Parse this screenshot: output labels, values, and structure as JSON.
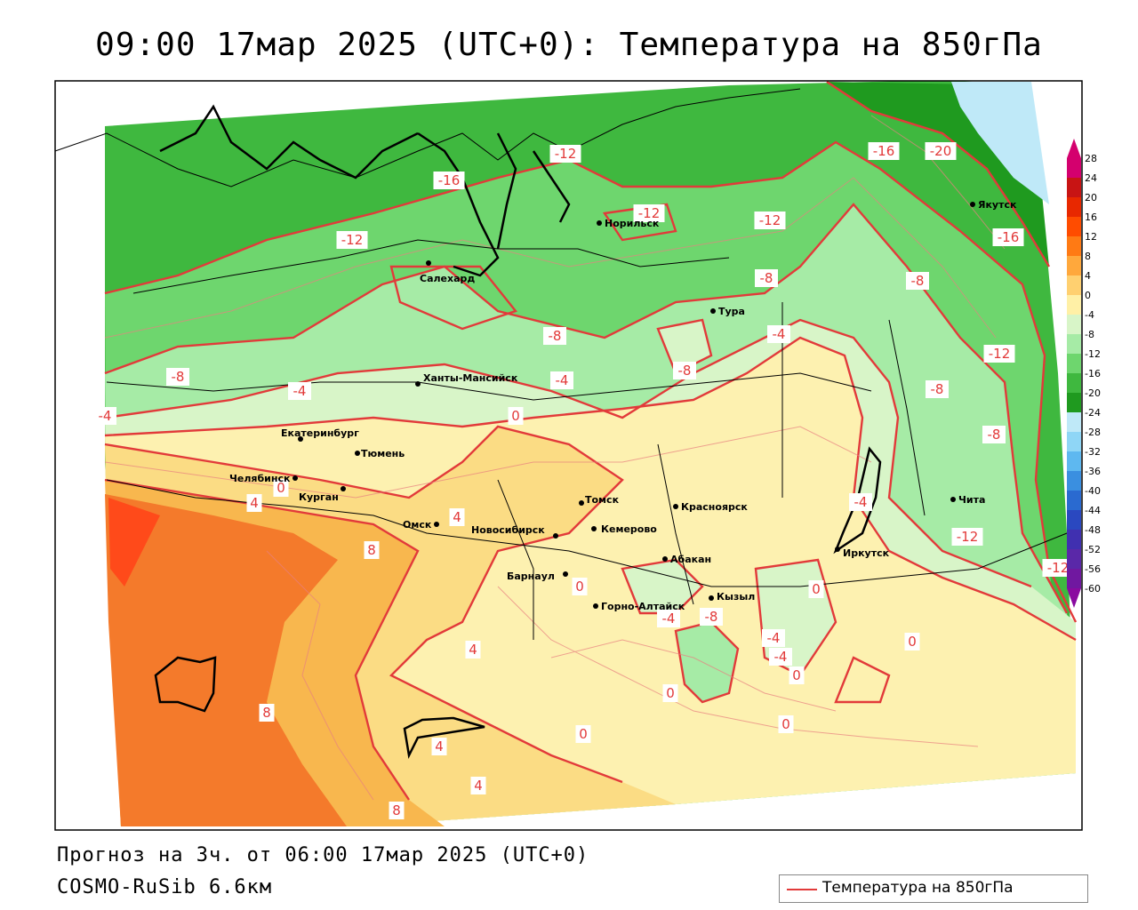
{
  "title": "09:00 17мар 2025 (UTC+0): Температура на 850гПа",
  "forecast_text": "Прогноз на 3ч. от 06:00 17мар 2025 (UTC+0)",
  "model_text": "COSMO-RuSib 6.6км",
  "legend": {
    "label": "Температура на 850гПа",
    "color": "#e23a3a"
  },
  "colors": {
    "isoline": "#e23a3a",
    "zone_minus20": "#1f9a1f",
    "zone_minus16": "#3fb83f",
    "zone_minus12": "#6ed66e",
    "zone_minus8": "#a6eba6",
    "zone_minus4": "#d8f5c8",
    "zone_0": "#fdf1b0",
    "zone_4": "#fbdc84",
    "zone_8": "#f8b74e",
    "zone_12": "#f47a2b",
    "zone_16": "#ff4a1a",
    "zone_cold": "#bfe9f8"
  },
  "scale": {
    "values": [
      "28",
      "24",
      "20",
      "16",
      "12",
      "8",
      "4",
      "0",
      "-4",
      "-8",
      "-12",
      "-16",
      "-20",
      "-24",
      "-28",
      "-32",
      "-36",
      "-40",
      "-44",
      "-48",
      "-52",
      "-56",
      "-60"
    ],
    "colors": [
      "#d4006e",
      "#c81414",
      "#e82800",
      "#ff4c00",
      "#ff7a14",
      "#ffa83c",
      "#ffd070",
      "#fff0a6",
      "#d8f5c8",
      "#a6eba6",
      "#6ed66e",
      "#3fb83f",
      "#1f9a1f",
      "#bfe9f8",
      "#8fd6f6",
      "#5eb8f0",
      "#3a8fe0",
      "#2a6ad0",
      "#2a48c0",
      "#4030b0",
      "#5a28a8",
      "#7018a0",
      "#8a0aa0"
    ]
  },
  "cities": [
    {
      "name": "Салехард"
    },
    {
      "name": "Норильск"
    },
    {
      "name": "Тура"
    },
    {
      "name": "Якутск"
    },
    {
      "name": "Ханты-Мансийск"
    },
    {
      "name": "Екатеринбург"
    },
    {
      "name": "Тюмень"
    },
    {
      "name": "Челябинск"
    },
    {
      "name": "Курган"
    },
    {
      "name": "Омск"
    },
    {
      "name": "Новосибирск"
    },
    {
      "name": "Томск"
    },
    {
      "name": "Кемерово"
    },
    {
      "name": "Красноярск"
    },
    {
      "name": "Барнаул"
    },
    {
      "name": "Абакан"
    },
    {
      "name": "Горно-Алтайск"
    },
    {
      "name": "Кызыл"
    },
    {
      "name": "Иркутск"
    },
    {
      "name": "Чита"
    }
  ],
  "isolines": [
    {
      "label": "-16"
    },
    {
      "label": "-12"
    },
    {
      "label": "-12"
    },
    {
      "label": "-12"
    },
    {
      "label": "-12"
    },
    {
      "label": "-16"
    },
    {
      "label": "-20"
    },
    {
      "label": "-16"
    },
    {
      "label": "-8"
    },
    {
      "label": "-8"
    },
    {
      "label": "-8"
    },
    {
      "label": "-4"
    },
    {
      "label": "-8"
    },
    {
      "label": "-12"
    },
    {
      "label": "-8"
    },
    {
      "label": "-8"
    },
    {
      "label": "-8"
    },
    {
      "label": "-4"
    },
    {
      "label": "-4"
    },
    {
      "label": "0"
    },
    {
      "label": "-4"
    },
    {
      "label": "0"
    },
    {
      "label": "4"
    },
    {
      "label": "4"
    },
    {
      "label": "8"
    },
    {
      "label": "0"
    },
    {
      "label": "-4"
    },
    {
      "label": "-8"
    },
    {
      "label": "-4"
    },
    {
      "label": "-4"
    },
    {
      "label": "-4"
    },
    {
      "label": "-12"
    },
    {
      "label": "0"
    },
    {
      "label": "0"
    },
    {
      "label": "4"
    },
    {
      "label": "0"
    },
    {
      "label": "0"
    },
    {
      "label": "0"
    },
    {
      "label": "8"
    },
    {
      "label": "4"
    },
    {
      "label": "4"
    },
    {
      "label": "0"
    },
    {
      "label": "8"
    },
    {
      "label": "-12"
    }
  ]
}
